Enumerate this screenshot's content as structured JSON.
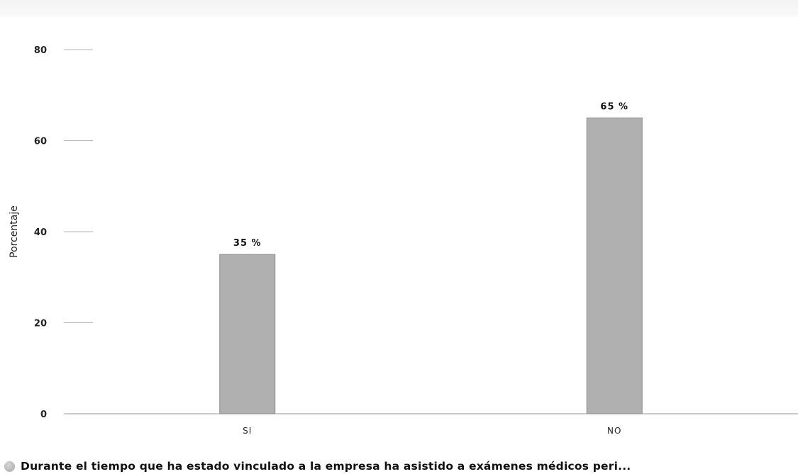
{
  "chart_data": {
    "type": "bar",
    "categories": [
      "SI",
      "NO"
    ],
    "series": [
      {
        "name": "Durante el tiempo que ha estado vinculado a la empresa ha asistido a exámenes médicos peri...",
        "values": [
          35,
          65
        ],
        "data_labels": [
          "35 %",
          "65 %"
        ],
        "color": "#b0b0b0"
      }
    ],
    "xlabel": "",
    "ylabel": "Porcentaje",
    "ylim": [
      0,
      80
    ],
    "yticks": [
      0,
      20,
      40,
      60,
      80
    ],
    "grid": false,
    "legend": "bottom-left"
  }
}
